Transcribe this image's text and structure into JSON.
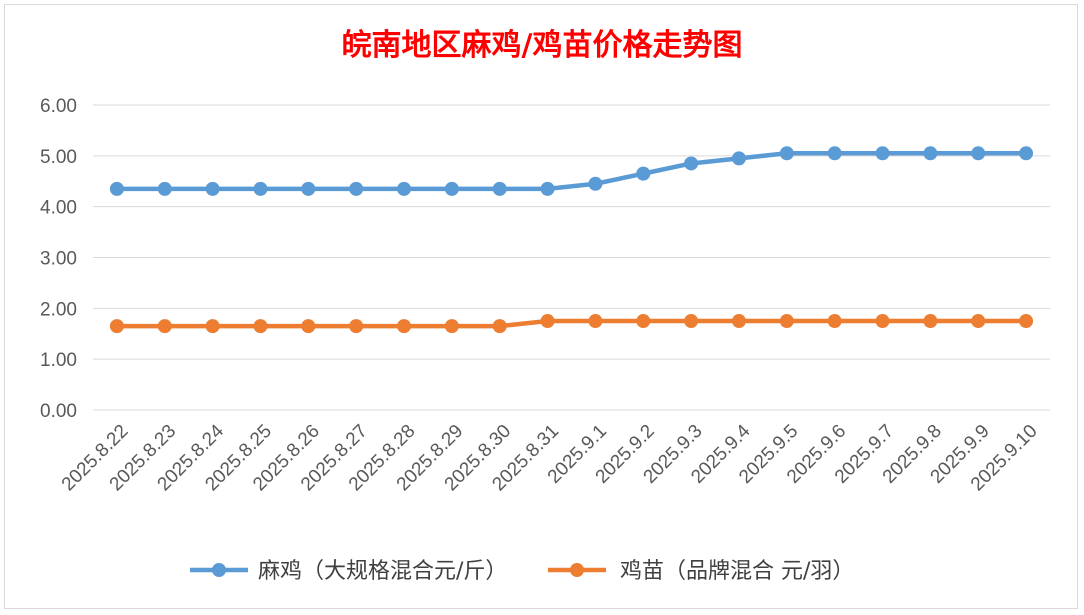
{
  "chart_data": {
    "type": "line",
    "title": "皖南地区麻鸡/鸡苗价格走势图",
    "xlabel": "",
    "ylabel": "",
    "ylim": [
      0,
      6
    ],
    "yticks": [
      "0.00",
      "1.00",
      "2.00",
      "3.00",
      "4.00",
      "5.00",
      "6.00"
    ],
    "grid": true,
    "legend_position": "bottom",
    "title_color": "#ff0000",
    "categories": [
      "2025.8.22",
      "2025.8.23",
      "2025.8.24",
      "2025.8.25",
      "2025.8.26",
      "2025.8.27",
      "2025.8.28",
      "2025.8.29",
      "2025.8.30",
      "2025.8.31",
      "2025.9.1",
      "2025.9.2",
      "2025.9.3",
      "2025.9.4",
      "2025.9.5",
      "2025.9.6",
      "2025.9.7",
      "2025.9.8",
      "2025.9.9",
      "2025.9.10"
    ],
    "series": [
      {
        "name": "麻鸡（大规格混合元/斤）",
        "color": "#5b9bd5",
        "values": [
          4.35,
          4.35,
          4.35,
          4.35,
          4.35,
          4.35,
          4.35,
          4.35,
          4.35,
          4.35,
          4.45,
          4.65,
          4.85,
          4.95,
          5.05,
          5.05,
          5.05,
          5.05,
          5.05,
          5.05
        ]
      },
      {
        "name": "鸡苗（品牌混合 元/羽）",
        "color": "#ed7d31",
        "values": [
          1.65,
          1.65,
          1.65,
          1.65,
          1.65,
          1.65,
          1.65,
          1.65,
          1.65,
          1.75,
          1.75,
          1.75,
          1.75,
          1.75,
          1.75,
          1.75,
          1.75,
          1.75,
          1.75,
          1.75
        ]
      }
    ]
  }
}
